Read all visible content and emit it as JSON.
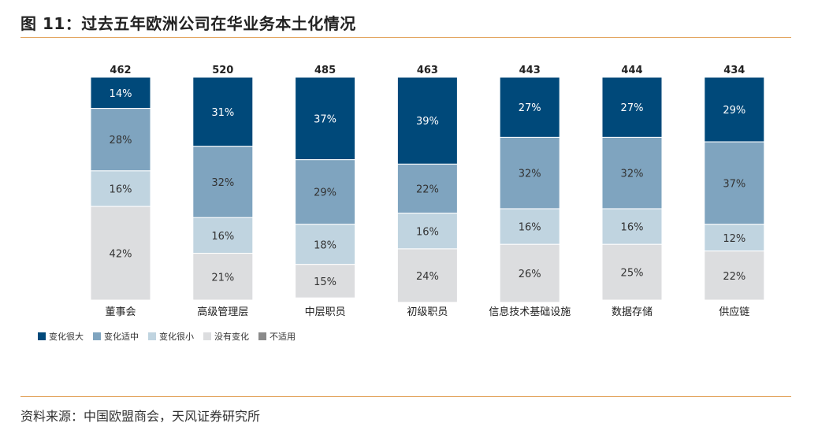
{
  "figure": {
    "title": "图 11：过去五年欧洲公司在华业务本土化情况",
    "source": "资料来源：中国欧盟商会，天风证券研究所"
  },
  "chart_data": {
    "type": "bar",
    "stacked": true,
    "normalized": true,
    "title": "",
    "xlabel": "",
    "ylabel": "",
    "ylim": [
      0,
      100
    ],
    "grid": false,
    "legend_position": "bottom-left",
    "categories": [
      "董事会",
      "高级管理层",
      "中层职员",
      "初级职员",
      "信息技术基础设施",
      "数据存储",
      "供应链"
    ],
    "totals": [
      "462",
      "520",
      "485",
      "463",
      "443",
      "444",
      "434"
    ],
    "series": [
      {
        "name": "变化很大",
        "color": "#00497a",
        "label_color": "#ffffff",
        "values": [
          14,
          31,
          37,
          39,
          27,
          27,
          29
        ]
      },
      {
        "name": "变化适中",
        "color": "#7fa4bf",
        "label_color": "#333333",
        "values": [
          28,
          32,
          29,
          22,
          32,
          32,
          37
        ]
      },
      {
        "name": "变化很小",
        "color": "#c0d4e0",
        "label_color": "#333333",
        "values": [
          16,
          16,
          18,
          16,
          16,
          16,
          12
        ]
      },
      {
        "name": "没有变化",
        "color": "#dcdddf",
        "label_color": "#333333",
        "values": [
          42,
          21,
          15,
          24,
          26,
          25,
          22
        ]
      },
      {
        "name": "不适用",
        "color": "#8a8a8a",
        "label_color": "#333333",
        "values": [
          0,
          0,
          0,
          0,
          0,
          0,
          0
        ]
      }
    ]
  }
}
